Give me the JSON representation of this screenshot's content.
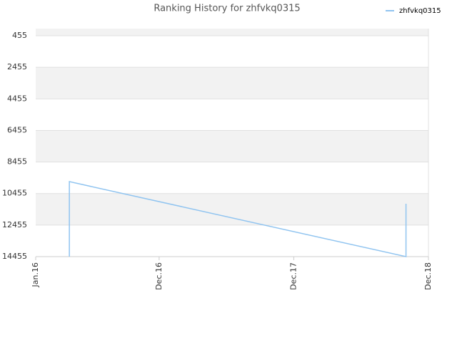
{
  "chart_data": {
    "type": "line",
    "title": "Ranking History for zhfvkq0315",
    "x": [
      "2016-04",
      "2016-04",
      "2016-04",
      "2018-10",
      "2018-10",
      "2018-10",
      "2018-10"
    ],
    "series": [
      {
        "name": "zhfvkq0315",
        "color": "#90c4f0",
        "values": [
          14455,
          12200,
          9700,
          14455,
          13500,
          12700,
          11100
        ]
      }
    ],
    "xlim": [
      "2016-01",
      "2018-12"
    ],
    "xticks": [
      {
        "value": "2016-01",
        "label": "Jan.16"
      },
      {
        "value": "2016-12",
        "label": "Dec.16"
      },
      {
        "value": "2017-12",
        "label": "Dec.17"
      },
      {
        "value": "2018-12",
        "label": "Dec.18"
      }
    ],
    "ylim": [
      0,
      14455
    ],
    "y_inverted": true,
    "yticks": [
      455,
      2455,
      4455,
      6455,
      8455,
      10455,
      12455,
      14455
    ],
    "grid": true,
    "legend": "top-right"
  }
}
